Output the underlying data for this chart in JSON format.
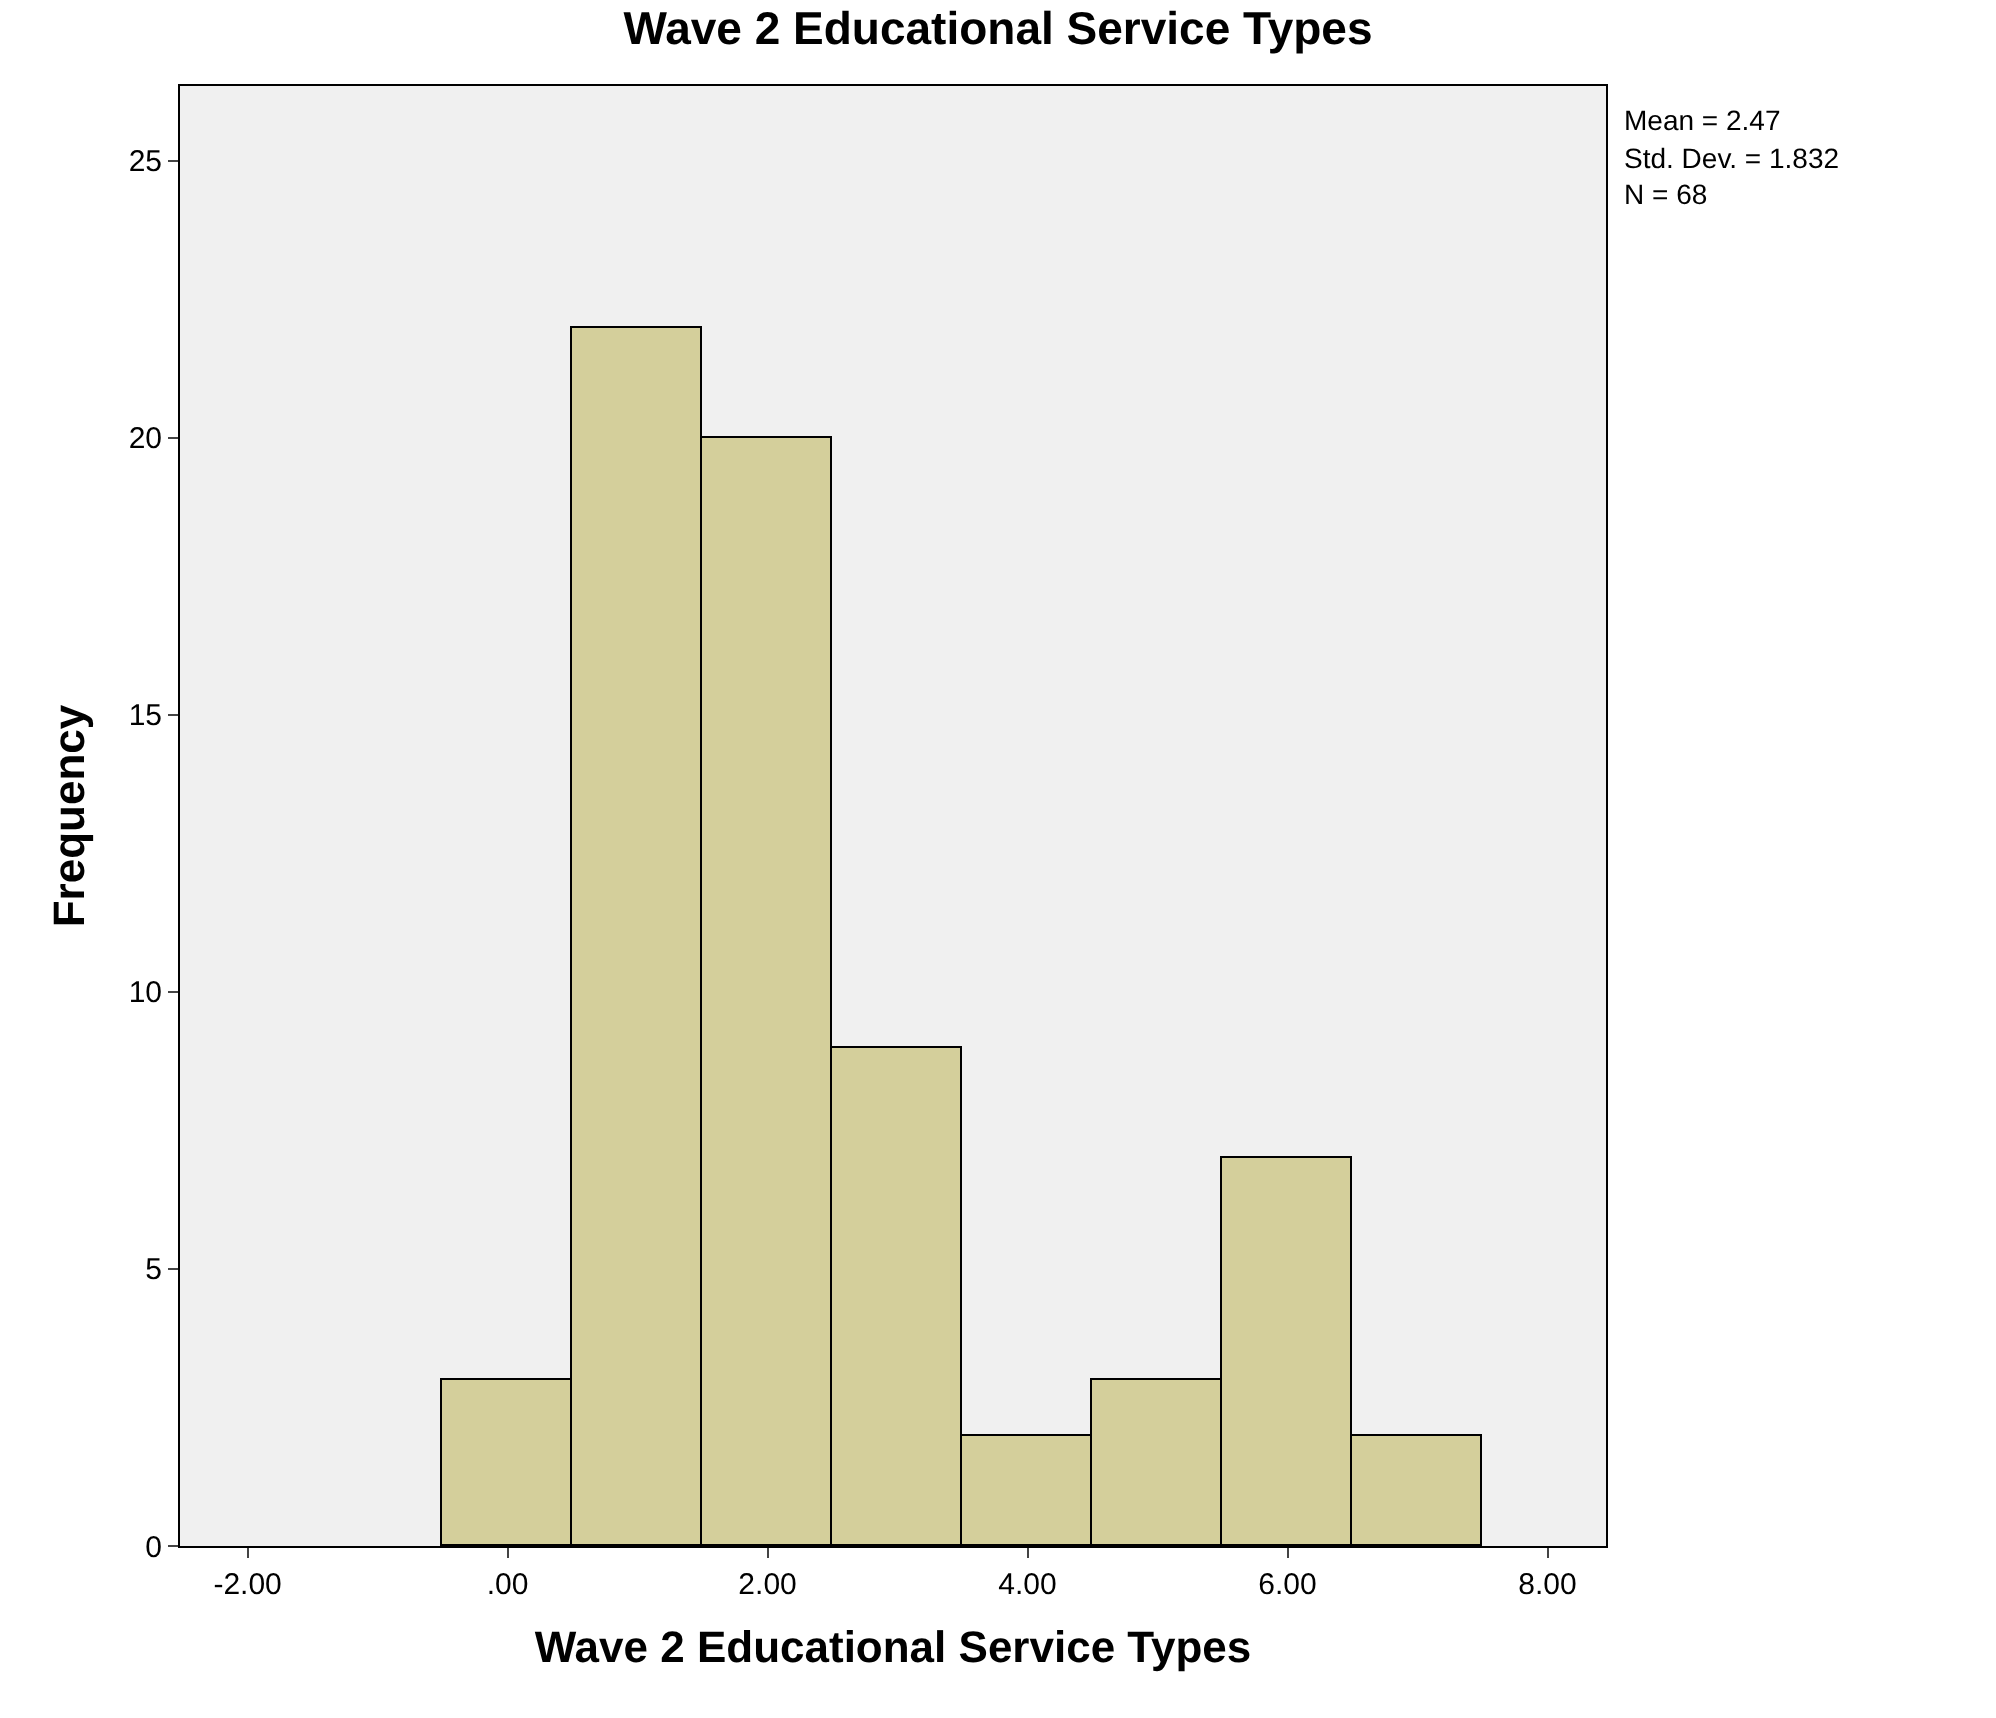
{
  "chart_data": {
    "type": "histogram",
    "title": "Wave 2 Educational Service Types",
    "xlabel": "Wave 2 Educational Service Types",
    "ylabel": "Frequency",
    "bins": [
      -0.5,
      0.5,
      1.5,
      2.5,
      3.5,
      4.5,
      5.5,
      6.5,
      7.5
    ],
    "values": [
      3,
      22,
      20,
      9,
      2,
      3,
      7,
      2
    ],
    "color": "#d4cf9b",
    "xlim": [
      -2.52,
      8.45
    ],
    "xticks": [
      {
        "value": -2,
        "label": "-2.00"
      },
      {
        "value": 0,
        "label": ".00"
      },
      {
        "value": 2,
        "label": "2.00"
      },
      {
        "value": 4,
        "label": "4.00"
      },
      {
        "value": 6,
        "label": "6.00"
      },
      {
        "value": 8,
        "label": "8.00"
      }
    ],
    "ylim": [
      0,
      26.35
    ],
    "yticks": [
      0,
      5,
      10,
      15,
      20,
      25
    ],
    "grid": false,
    "annotations": [
      "Mean = 2.47",
      "Std. Dev. = 1.832",
      "N = 68"
    ]
  }
}
